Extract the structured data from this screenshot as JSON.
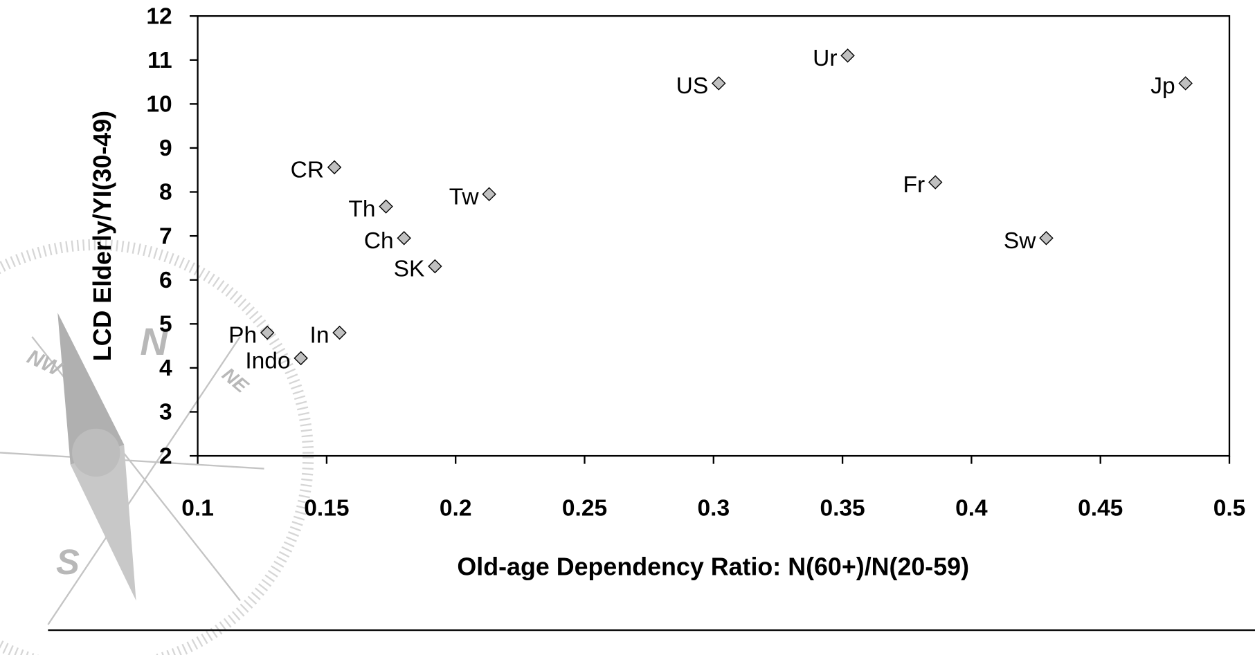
{
  "chart_data": {
    "type": "scatter",
    "x_label": "Old-age Dependency Ratio: N(60+)/N(20-59)",
    "y_label": "LCD Elderly/YI(30-49)",
    "x": [
      0.352,
      0.302,
      0.483,
      0.153,
      0.386,
      0.213,
      0.173,
      0.18,
      0.429,
      0.192,
      0.127,
      0.155,
      0.14
    ],
    "values": [
      11.1,
      10.47,
      10.47,
      8.56,
      8.22,
      7.95,
      7.67,
      6.95,
      6.95,
      6.31,
      4.8,
      4.8,
      4.22
    ],
    "point_labels": [
      "Ur",
      "US",
      "Jp",
      "CR",
      "Fr",
      "Tw",
      "Th",
      "Ch",
      "Sw",
      "SK",
      "Ph",
      "In",
      "Indo"
    ],
    "color": "#c0c0c0",
    "xlim": [
      0.1,
      0.5
    ],
    "xticks": [
      0.1,
      0.15,
      0.2,
      0.25,
      0.3,
      0.35,
      0.4,
      0.45,
      0.5
    ],
    "ylim": [
      2,
      12
    ],
    "yticks": [
      2,
      3,
      4,
      5,
      6,
      7,
      8,
      9,
      10,
      11,
      12
    ],
    "grid": false
  },
  "watermark": {
    "labels": [
      "N",
      "S",
      "NW",
      "NE"
    ]
  }
}
